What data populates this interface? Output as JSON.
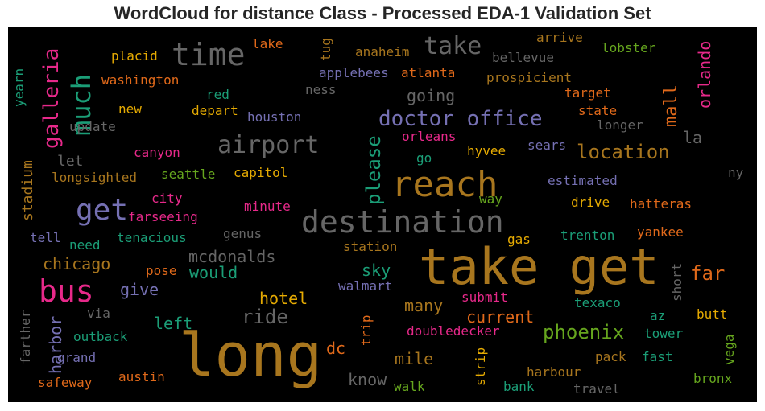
{
  "title": "WordCloud for distance Class - Processed EDA-1 Validation Set",
  "palette": {
    "orange": "#E0691A",
    "gold": "#A8761E",
    "yellow": "#E6AB02",
    "pink": "#E7298A",
    "purple": "#7570B3",
    "green": "#66A61E",
    "teal": "#1B9E77",
    "gray": "#666666"
  },
  "words": [
    {
      "text": "long",
      "color": "#A8761E"
    },
    {
      "text": "take get",
      "color": "#A8761E"
    },
    {
      "text": "reach",
      "color": "#A8761E"
    },
    {
      "text": "destination",
      "color": "#666666"
    },
    {
      "text": "time",
      "color": "#666666"
    },
    {
      "text": "bus",
      "color": "#E7298A"
    },
    {
      "text": "get",
      "color": "#7570B3"
    },
    {
      "text": "airport",
      "color": "#666666"
    },
    {
      "text": "much",
      "color": "#1B9E77"
    },
    {
      "text": "take",
      "color": "#666666"
    },
    {
      "text": "doctor office",
      "color": "#7570B3"
    },
    {
      "text": "location",
      "color": "#A8761E"
    },
    {
      "text": "phoenix",
      "color": "#66A61E"
    },
    {
      "text": "please",
      "color": "#1B9E77"
    },
    {
      "text": "galleria",
      "color": "#E7298A"
    },
    {
      "text": "mall",
      "color": "#E0691A"
    },
    {
      "text": "orlando",
      "color": "#E7298A"
    },
    {
      "text": "far",
      "color": "#E0691A"
    },
    {
      "text": "going",
      "color": "#666666"
    },
    {
      "text": "ride",
      "color": "#666666"
    },
    {
      "text": "mcdonalds",
      "color": "#666666"
    },
    {
      "text": "chicago",
      "color": "#A8761E"
    },
    {
      "text": "harbor",
      "color": "#7570B3"
    },
    {
      "text": "hotel",
      "color": "#E6AB02"
    },
    {
      "text": "current",
      "color": "#E0691A"
    },
    {
      "text": "many",
      "color": "#A8761E"
    },
    {
      "text": "mile",
      "color": "#A8761E"
    },
    {
      "text": "would",
      "color": "#1B9E77"
    },
    {
      "text": "give",
      "color": "#7570B3"
    },
    {
      "text": "left",
      "color": "#1B9E77"
    },
    {
      "text": "sky",
      "color": "#1B9E77"
    },
    {
      "text": "dc",
      "color": "#E0691A"
    },
    {
      "text": "know",
      "color": "#666666"
    },
    {
      "text": "let",
      "color": "#666666"
    },
    {
      "text": "stadium",
      "color": "#A8761E"
    },
    {
      "text": "la",
      "color": "#666666"
    },
    {
      "text": "placid",
      "color": "#E6AB02"
    },
    {
      "text": "washington",
      "color": "#E0691A"
    },
    {
      "text": "new",
      "color": "#E6AB02"
    },
    {
      "text": "red",
      "color": "#1B9E77"
    },
    {
      "text": "depart",
      "color": "#E6AB02"
    },
    {
      "text": "houston",
      "color": "#7570B3"
    },
    {
      "text": "update",
      "color": "#666666"
    },
    {
      "text": "lake",
      "color": "#E0691A"
    },
    {
      "text": "tug",
      "color": "#A8761E"
    },
    {
      "text": "anaheim",
      "color": "#A8761E"
    },
    {
      "text": "applebees",
      "color": "#7570B3"
    },
    {
      "text": "atlanta",
      "color": "#E0691A"
    },
    {
      "text": "ness",
      "color": "#666666"
    },
    {
      "text": "arrive",
      "color": "#A8761E"
    },
    {
      "text": "bellevue",
      "color": "#666666"
    },
    {
      "text": "lobster",
      "color": "#66A61E"
    },
    {
      "text": "prospicient",
      "color": "#A8761E"
    },
    {
      "text": "target",
      "color": "#E0691A"
    },
    {
      "text": "state",
      "color": "#E0691A"
    },
    {
      "text": "longer",
      "color": "#666666"
    },
    {
      "text": "yearn",
      "color": "#1B9E77"
    },
    {
      "text": "canyon",
      "color": "#E7298A"
    },
    {
      "text": "longsighted",
      "color": "#A8761E"
    },
    {
      "text": "seattle",
      "color": "#66A61E"
    },
    {
      "text": "capitol",
      "color": "#E6AB02"
    },
    {
      "text": "orleans",
      "color": "#E7298A"
    },
    {
      "text": "go",
      "color": "#1B9E77"
    },
    {
      "text": "hyvee",
      "color": "#E6AB02"
    },
    {
      "text": "sears",
      "color": "#7570B3"
    },
    {
      "text": "estimated",
      "color": "#7570B3"
    },
    {
      "text": "ny",
      "color": "#666666"
    },
    {
      "text": "city",
      "color": "#E7298A"
    },
    {
      "text": "farseeing",
      "color": "#E7298A"
    },
    {
      "text": "minute",
      "color": "#E7298A"
    },
    {
      "text": "way",
      "color": "#66A61E"
    },
    {
      "text": "drive",
      "color": "#E6AB02"
    },
    {
      "text": "hatteras",
      "color": "#E0691A"
    },
    {
      "text": "tell",
      "color": "#7570B3"
    },
    {
      "text": "need",
      "color": "#1B9E77"
    },
    {
      "text": "tenacious",
      "color": "#1B9E77"
    },
    {
      "text": "genus",
      "color": "#666666"
    },
    {
      "text": "station",
      "color": "#A8761E"
    },
    {
      "text": "gas",
      "color": "#E6AB02"
    },
    {
      "text": "trenton",
      "color": "#1B9E77"
    },
    {
      "text": "yankee",
      "color": "#E0691A"
    },
    {
      "text": "pose",
      "color": "#E0691A"
    },
    {
      "text": "walmart",
      "color": "#7570B3"
    },
    {
      "text": "submit",
      "color": "#E7298A"
    },
    {
      "text": "short",
      "color": "#666666"
    },
    {
      "text": "via",
      "color": "#666666"
    },
    {
      "text": "outback",
      "color": "#1B9E77"
    },
    {
      "text": "texaco",
      "color": "#1B9E77"
    },
    {
      "text": "az",
      "color": "#1B9E77"
    },
    {
      "text": "butt",
      "color": "#E6AB02"
    },
    {
      "text": "trip",
      "color": "#E0691A"
    },
    {
      "text": "doubledecker",
      "color": "#E7298A"
    },
    {
      "text": "tower",
      "color": "#1B9E77"
    },
    {
      "text": "farther",
      "color": "#666666"
    },
    {
      "text": "grand",
      "color": "#7570B3"
    },
    {
      "text": "strip",
      "color": "#E6AB02"
    },
    {
      "text": "pack",
      "color": "#A8761E"
    },
    {
      "text": "fast",
      "color": "#1B9E77"
    },
    {
      "text": "vega",
      "color": "#66A61E"
    },
    {
      "text": "austin",
      "color": "#E0691A"
    },
    {
      "text": "harbour",
      "color": "#A8761E"
    },
    {
      "text": "bronx",
      "color": "#66A61E"
    },
    {
      "text": "safeway",
      "color": "#E0691A"
    },
    {
      "text": "walk",
      "color": "#66A61E"
    },
    {
      "text": "bank",
      "color": "#1B9E77"
    },
    {
      "text": "travel",
      "color": "#666666"
    }
  ]
}
